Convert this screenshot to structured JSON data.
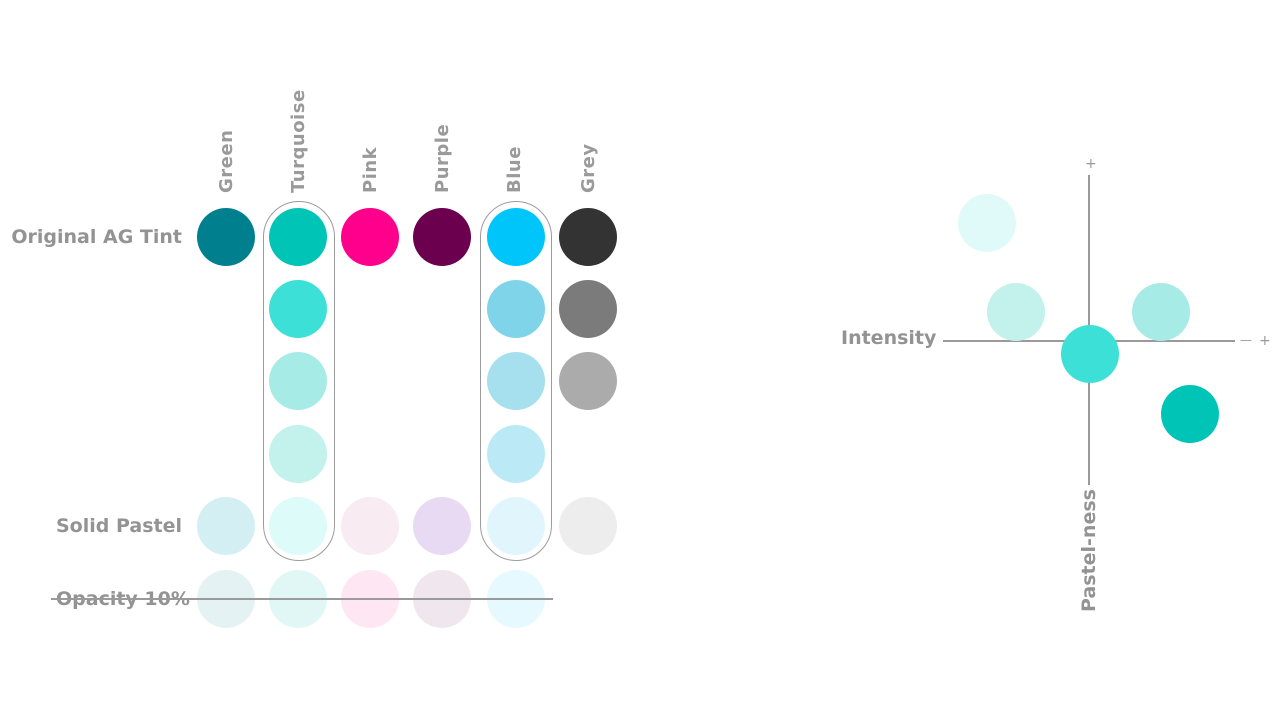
{
  "columns": [
    {
      "name": "Green"
    },
    {
      "name": "Turquoise"
    },
    {
      "name": "Pink"
    },
    {
      "name": "Purple"
    },
    {
      "name": "Blue"
    },
    {
      "name": "Grey"
    }
  ],
  "rows": {
    "original": "Original AG Tint",
    "solid_pastel": "Solid Pastel",
    "opacity": "Opacity 10%"
  },
  "colors": {
    "original": [
      "#00808f",
      "#00c4b5",
      "#ff008c",
      "#6b004f",
      "#00c5fb",
      "#333333"
    ],
    "turquoise_steps": [
      "#3de0d6",
      "#a6ebe6",
      "#c3f1ec"
    ],
    "blue_steps": [
      "#7fd4ea",
      "#a6dfee",
      "#bce9f6"
    ],
    "grey_steps": [
      "#7b7b7b",
      "#ababab"
    ],
    "solid_pastel": [
      "#d4eff4",
      "#ddfbf9",
      "#f8ebf1",
      "#e9daf3",
      "#e1f5fd",
      "#ededed"
    ],
    "opacity": [
      "#e5f2f3",
      "#e1f7f6",
      "#ffe6f3",
      "#f0e6ed",
      "#e6f9ff"
    ]
  },
  "axes": {
    "x_label": "Intensity",
    "y_label": "Pastel-ness",
    "plus_x": "+",
    "plus_y": "+",
    "minus_x": "—",
    "minus_y": "—"
  },
  "scatter_colors": [
    "#e0fafa",
    "#c3f1ec",
    "#a6ebe6",
    "#3de0d6",
    "#00c4b5"
  ]
}
